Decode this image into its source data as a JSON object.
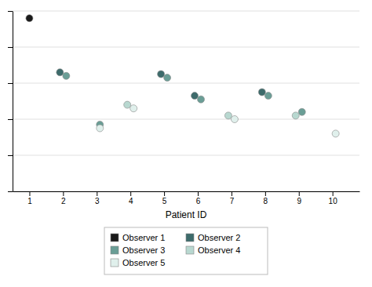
{
  "chart_data": {
    "type": "scatter",
    "xlabel": "Patient ID",
    "xlim": [
      0.5,
      10.8
    ],
    "xticks": [
      1,
      2,
      3,
      4,
      5,
      6,
      7,
      8,
      9,
      10
    ],
    "ylim": [
      0,
      5
    ],
    "yticks": [
      0,
      1,
      2,
      3,
      4,
      5
    ],
    "grid": true,
    "tick_labels": "x",
    "legend": "bottom",
    "marker": "circle",
    "series": [
      {
        "name": "Observer 1",
        "color": "#1a1a1a",
        "x": [
          1
        ],
        "values": [
          4.8
        ]
      },
      {
        "name": "Observer 2",
        "color": "#3d6b6b",
        "x": [
          2,
          5,
          6,
          8
        ],
        "values": [
          3.3,
          3.25,
          2.65,
          2.75
        ]
      },
      {
        "name": "Observer 3",
        "color": "#6a9e96",
        "x": [
          2,
          3,
          5,
          6,
          8,
          9
        ],
        "values": [
          3.2,
          1.85,
          3.15,
          2.55,
          2.65,
          2.2
        ]
      },
      {
        "name": "Observer 4",
        "color": "#b8d8d0",
        "x": [
          4,
          7,
          9
        ],
        "values": [
          2.4,
          2.1,
          2.1
        ]
      },
      {
        "name": "Observer 5",
        "color": "#e0f0ec",
        "x": [
          3,
          4,
          7,
          10
        ],
        "values": [
          1.75,
          2.3,
          2.0,
          1.6
        ]
      }
    ]
  }
}
